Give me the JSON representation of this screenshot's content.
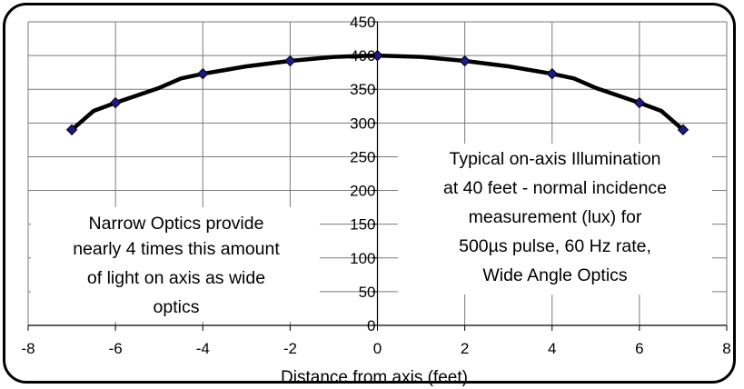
{
  "chart_data": {
    "type": "line",
    "title": "",
    "xlabel": "Distance from axis (feet)",
    "ylabel": "",
    "xlim": [
      -8,
      8
    ],
    "ylim": [
      0,
      450
    ],
    "x_ticks": [
      -8,
      -6,
      -4,
      -2,
      0,
      2,
      4,
      6,
      8
    ],
    "y_ticks": [
      0,
      50,
      100,
      150,
      200,
      250,
      300,
      350,
      400,
      450
    ],
    "grid": true,
    "legend": "none",
    "series": [
      {
        "curve_x": [
          -7,
          -6.5,
          -6,
          -5,
          -4.5,
          -4,
          -3,
          -2,
          -1,
          0,
          1,
          2,
          3,
          4,
          4.5,
          5,
          6,
          6.5,
          7
        ],
        "curve_y": [
          290,
          318,
          330,
          352,
          366,
          373,
          384,
          392,
          398,
          400,
          398,
          392,
          384,
          373,
          366,
          352,
          330,
          318,
          290
        ],
        "marker_x": [
          -7,
          -6,
          -4,
          -2,
          0,
          2,
          4,
          6,
          7
        ],
        "marker_y": [
          290,
          330,
          373,
          392,
          400,
          392,
          373,
          330,
          290
        ],
        "line_color": "#000000",
        "marker_color": "#1a1a8c"
      }
    ],
    "annotations": {
      "left": [
        "Narrow Optics provide",
        "nearly 4 times this amount",
        "of light on axis as wide",
        "optics"
      ],
      "right": [
        "Typical on-axis Illumination",
        "at 40 feet - normal incidence",
        "measurement (lux) for",
        "500µs pulse, 60 Hz rate,",
        "Wide Angle Optics"
      ]
    }
  }
}
